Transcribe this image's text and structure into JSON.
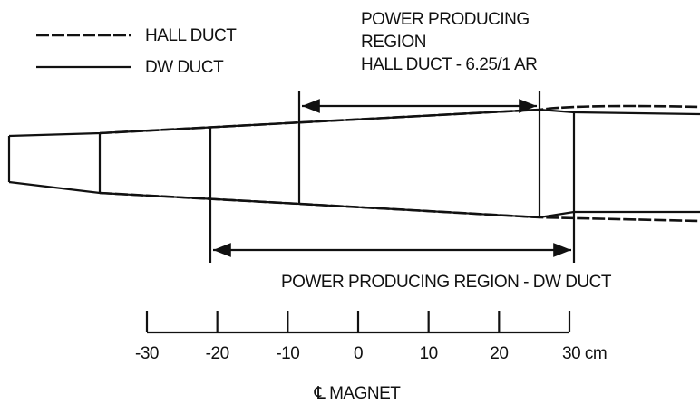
{
  "legend": [
    {
      "label": "HALL DUCT"
    },
    {
      "label": "DW DUCT"
    }
  ],
  "hall_region": {
    "lines": [
      "POWER PRODUCING",
      "REGION",
      "HALL DUCT - 6.25/1 AR"
    ]
  },
  "dw_region": {
    "label": "POWER PRODUCING REGION - DW DUCT"
  },
  "scale": {
    "labels": [
      "-30",
      "-20",
      "-10",
      "0",
      "10",
      "20",
      "30 cm"
    ],
    "axis_label": "℄ MAGNET"
  }
}
